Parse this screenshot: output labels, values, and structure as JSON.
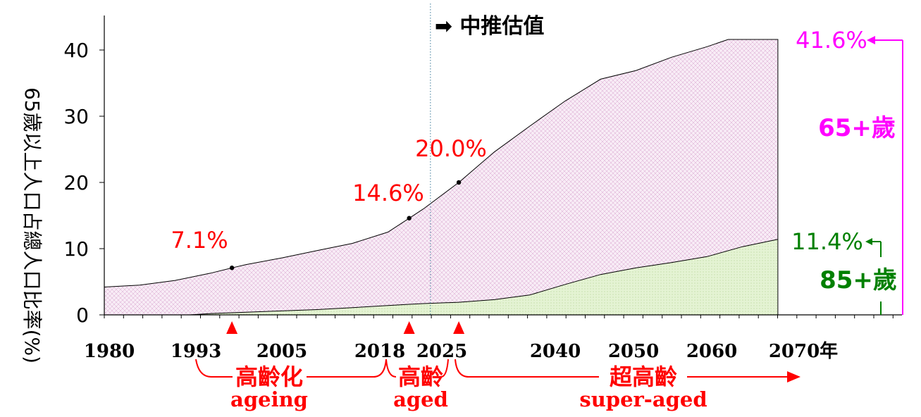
{
  "chart_data": {
    "type": "area",
    "ylabel": "65歲以上人口占總人口比率(%)",
    "x_unit": "年",
    "xlim": [
      1975,
      2072
    ],
    "ylim": [
      0,
      45
    ],
    "y_ticks": [
      0,
      10,
      20,
      30,
      40
    ],
    "x_tick_labels": [
      "1980",
      "1993",
      "2005",
      "2018",
      "2025",
      "2040",
      "2050",
      "2060",
      "2070年"
    ],
    "x_ticks": [
      1980,
      1993,
      2005,
      2018,
      2025,
      2040,
      2050,
      2060,
      2070
    ],
    "projection_start_year": 2021,
    "projection_label": "➡ 中推估值",
    "series": [
      {
        "name": "65+歲",
        "color": "#ff00ff",
        "x": [
          1975,
          1980,
          1985,
          1990,
          1993,
          1995,
          2000,
          2005,
          2010,
          2015,
          2018,
          2020,
          2025,
          2030,
          2035,
          2040,
          2045,
          2050,
          2055,
          2060,
          2063,
          2065,
          2070
        ],
        "values": [
          4.2,
          4.5,
          5.2,
          6.3,
          7.1,
          7.6,
          8.6,
          9.7,
          10.8,
          12.5,
          14.6,
          16.0,
          20.0,
          24.6,
          28.5,
          32.3,
          35.6,
          36.9,
          38.9,
          40.5,
          41.6,
          41.6,
          41.6
        ]
      },
      {
        "name": "85+歲",
        "color": "#008000",
        "x": [
          1975,
          1987,
          1990,
          1995,
          2000,
          2005,
          2010,
          2015,
          2018,
          2020,
          2025,
          2030,
          2035,
          2040,
          2045,
          2050,
          2055,
          2060,
          2065,
          2070
        ],
        "values": [
          0,
          0,
          0.2,
          0.4,
          0.6,
          0.8,
          1.1,
          1.4,
          1.6,
          1.7,
          1.9,
          2.3,
          3.0,
          4.6,
          6.1,
          7.1,
          7.9,
          8.8,
          10.3,
          11.4
        ]
      }
    ],
    "milestones": [
      {
        "year": 1993,
        "value": 7.1,
        "label": "7.1%"
      },
      {
        "year": 2018,
        "value": 14.6,
        "label": "14.6%"
      },
      {
        "year": 2025,
        "value": 20.0,
        "label": "20.0%"
      }
    ],
    "end_labels": {
      "age65": {
        "value_label": "41.6%",
        "name_label": "65+歲"
      },
      "age85": {
        "value_label": "11.4%",
        "name_label": "85+歲"
      }
    },
    "stages": [
      {
        "cn": "高齡化",
        "en": "ageing"
      },
      {
        "cn": "高齡",
        "en": "aged"
      },
      {
        "cn": "超高齡",
        "en": "super-aged"
      }
    ],
    "colors": {
      "marker_red": "#ff0000",
      "magenta": "#ff00ff",
      "green": "#008000",
      "area65_fill": "#f7e8f5",
      "area85_fill": "#e6f5d6"
    }
  }
}
